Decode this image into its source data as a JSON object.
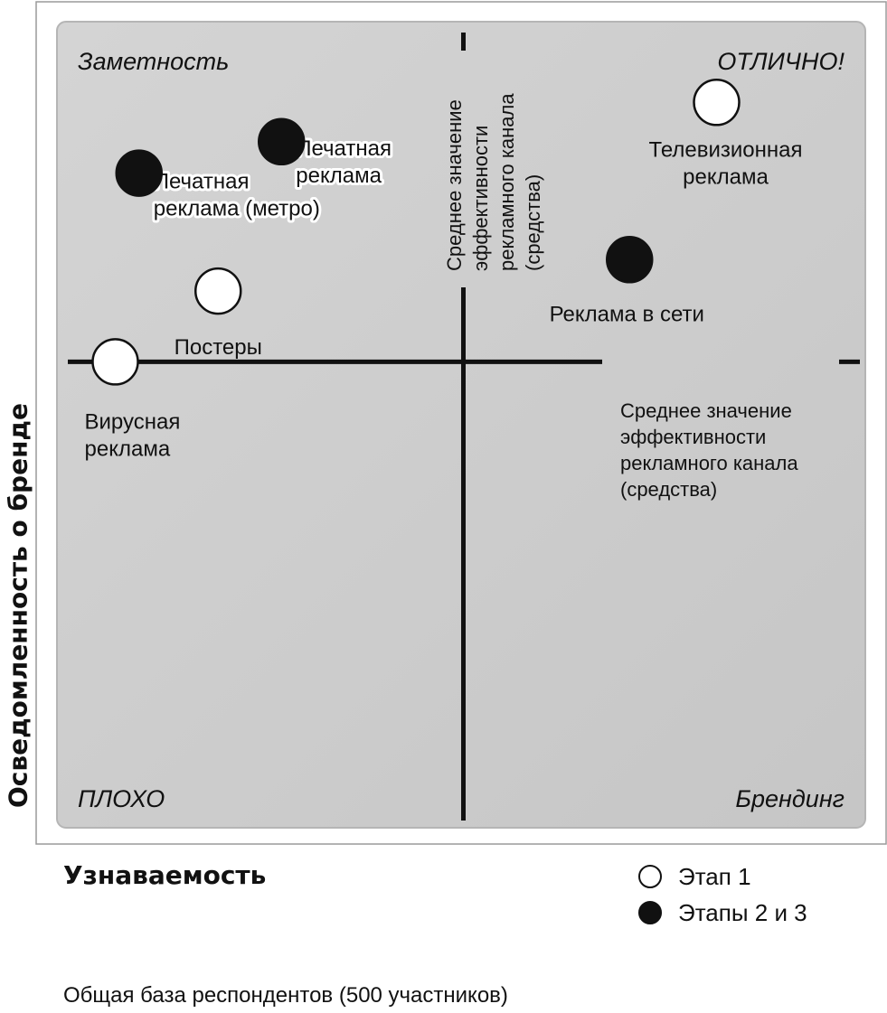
{
  "chart_data": {
    "type": "scatter",
    "title": "",
    "xlabel": "Узнаваемость",
    "ylabel": "Осведомленность о бренде",
    "xlim": [
      0,
      10
    ],
    "ylim": [
      0,
      10
    ],
    "grid": false,
    "legend_position": "bottom-right",
    "quadrant_labels": {
      "top_left": "Заметность",
      "top_right": "ОТЛИЧНО!",
      "bottom_left": "ПЛОХО",
      "bottom_right": "Брендинг"
    },
    "reference_lines": {
      "vertical": {
        "x": 5,
        "label": [
          "Среднее значение",
          "эффективности",
          "рекламного канала",
          "(средства)"
        ]
      },
      "horizontal": {
        "y": 5.8,
        "label": [
          "Среднее значение",
          "эффективности",
          "рекламного канала",
          "(средства)"
        ]
      }
    },
    "series": [
      {
        "name": "Этап 1",
        "fill": "#ffffff",
        "points": [
          {
            "label": [
              "Телевизионная",
              "реклама"
            ],
            "x": 8.2,
            "y": 9.1
          },
          {
            "label": [
              "Постеры"
            ],
            "x": 1.9,
            "y": 6.7
          },
          {
            "label": [
              "Вирусная",
              "реклама"
            ],
            "x": 0.6,
            "y": 5.8
          }
        ]
      },
      {
        "name": "Этапы 2 и 3",
        "fill": "#111111",
        "points": [
          {
            "label": [
              "Печатная",
              "реклама"
            ],
            "x": 2.7,
            "y": 8.6
          },
          {
            "label": [
              "Печатная",
              "реклама (метро)"
            ],
            "x": 0.9,
            "y": 8.2
          },
          {
            "label": [
              "Реклама в сети"
            ],
            "x": 7.1,
            "y": 7.1
          }
        ]
      }
    ]
  },
  "footnote": "Общая база респондентов (500 участников)"
}
